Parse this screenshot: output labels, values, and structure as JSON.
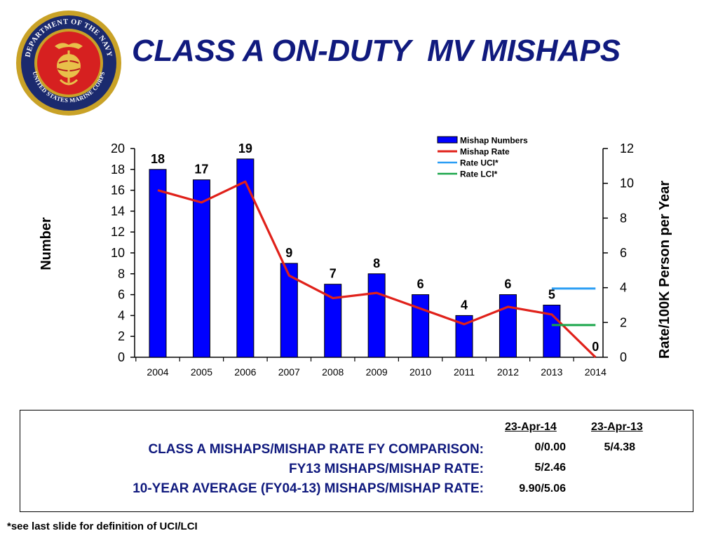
{
  "header": {
    "title": "CLASS A ON-DUTY  MV MISHAPS",
    "seal_text": "DEPARTMENT OF THE NAVY • UNITED STATES MARINE CORPS"
  },
  "colors": {
    "title": "#101a7e",
    "bars": "#0000ff",
    "rate_line": "#e0211a",
    "uci": "#2a9df4",
    "lci": "#1aa64a",
    "seal_outer": "#c9a227",
    "seal_ring": "#1b2a6e",
    "seal_center": "#d62020"
  },
  "chart_data": {
    "type": "bar",
    "categories": [
      "2004",
      "2005",
      "2006",
      "2007",
      "2008",
      "2009",
      "2010",
      "2011",
      "2012",
      "2013",
      "2014"
    ],
    "series": [
      {
        "name": "Mishap Numbers",
        "type": "bar",
        "axis": "left",
        "values": [
          18,
          17,
          19,
          9,
          7,
          8,
          6,
          4,
          6,
          5,
          0
        ]
      },
      {
        "name": "Mishap Rate",
        "type": "line",
        "axis": "right",
        "values": [
          9.6,
          8.9,
          10.1,
          4.7,
          3.4,
          3.7,
          2.8,
          1.9,
          2.9,
          2.46,
          0
        ]
      },
      {
        "name": "Rate UCI*",
        "type": "segment",
        "axis": "right",
        "x_range": [
          "2013",
          "2014"
        ],
        "value": 3.95
      },
      {
        "name": "Rate LCI*",
        "type": "segment",
        "axis": "right",
        "x_range": [
          "2013",
          "2014"
        ],
        "value": 1.85
      }
    ],
    "data_labels": [
      "18",
      "17",
      "19",
      "9",
      "7",
      "8",
      "6",
      "4",
      "6",
      "5",
      "0"
    ],
    "left_ticks": [
      "0",
      "2",
      "4",
      "6",
      "8",
      "10",
      "12",
      "14",
      "16",
      "18",
      "20"
    ],
    "right_ticks": [
      "0",
      "2",
      "4",
      "6",
      "8",
      "10",
      "12"
    ],
    "ylabel": "Number",
    "y2label": "Rate/100K Person per Year",
    "xlabel": "",
    "ylim": [
      0,
      20
    ],
    "y2lim": [
      0,
      12
    ],
    "grid": false,
    "legend_position": "top-right"
  },
  "summary": {
    "col_headers": [
      "23-Apr-14",
      "23-Apr-13"
    ],
    "rows": [
      {
        "label": "CLASS A MISHAPS/MISHAP RATE FY COMPARISON:",
        "values": [
          "0/0.00",
          "5/4.38"
        ]
      },
      {
        "label": "FY13 MISHAPS/MISHAP RATE:",
        "values": [
          "5/2.46",
          ""
        ]
      },
      {
        "label": "10-YEAR AVERAGE (FY04-13) MISHAPS/MISHAP RATE:",
        "values": [
          "9.90/5.06",
          ""
        ]
      }
    ]
  },
  "footnote": "*see last slide for definition of UCI/LCI"
}
